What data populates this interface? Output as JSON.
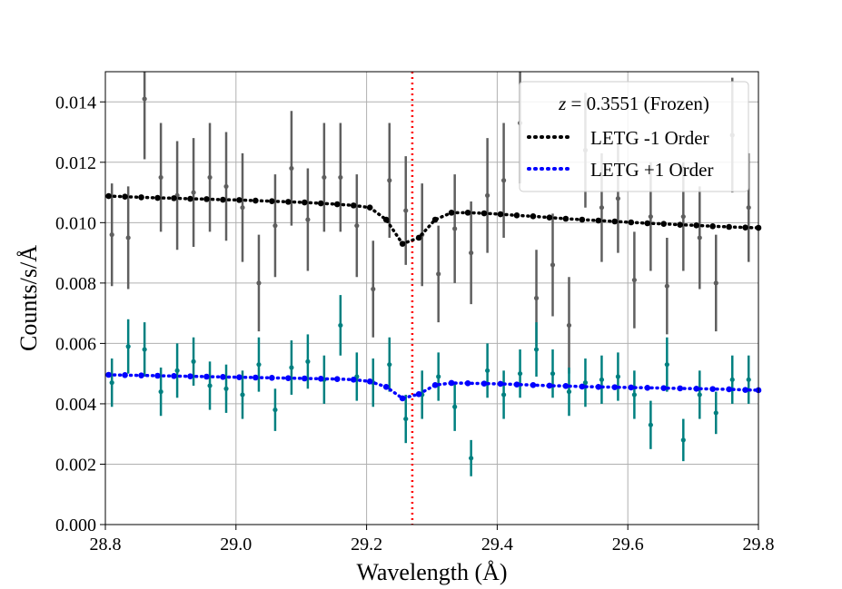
{
  "chart_data": {
    "type": "scatter",
    "xlabel": "Wavelength (Å)",
    "ylabel": "Counts/s/Å",
    "xlim": [
      28.8,
      29.8
    ],
    "ylim": [
      0.0,
      0.015
    ],
    "grid": true,
    "xticks": [
      "28.8",
      "29.0",
      "29.2",
      "29.4",
      "29.6",
      "29.8"
    ],
    "yticks": [
      "0.000",
      "0.002",
      "0.004",
      "0.006",
      "0.008",
      "0.010",
      "0.012",
      "0.014"
    ],
    "vline": {
      "x": 29.27,
      "color": "#ff0000",
      "style": "dotted"
    },
    "legend": {
      "title_italic": "z",
      "title_rest": " = 0.3551 (Frozen)",
      "entries": [
        "LETG -1 Order",
        "LETG +1 Order"
      ],
      "position": "top-right"
    },
    "colors": {
      "data_minus1": "#5f5f5f",
      "data_plus1": "#008080",
      "model_minus1": "#000000",
      "model_plus1": "#0000ff",
      "vline": "#ff0000",
      "grid": "#b0b0b0"
    },
    "data_x": [
      28.81,
      28.835,
      28.86,
      28.885,
      28.91,
      28.935,
      28.96,
      28.985,
      29.01,
      29.035,
      29.06,
      29.085,
      29.11,
      29.135,
      29.16,
      29.185,
      29.21,
      29.235,
      29.26,
      29.285,
      29.31,
      29.335,
      29.36,
      29.385,
      29.41,
      29.435,
      29.46,
      29.485,
      29.51,
      29.535,
      29.56,
      29.585,
      29.61,
      29.635,
      29.66,
      29.685,
      29.71,
      29.735,
      29.76,
      29.785
    ],
    "series_data": [
      {
        "name": "LETG -1 Order data",
        "y": [
          0.0096,
          0.0095,
          0.0141,
          0.0115,
          0.0109,
          0.011,
          0.0115,
          0.0112,
          0.0105,
          0.008,
          0.0099,
          0.0118,
          0.0101,
          0.0115,
          0.0115,
          0.0099,
          0.0078,
          0.0114,
          0.0104,
          0.0096,
          0.0083,
          0.0098,
          0.009,
          0.0109,
          0.0114,
          0.0133,
          0.0075,
          0.0086,
          0.0066,
          0.0124,
          0.0105,
          0.0108,
          0.0081,
          0.0102,
          0.0079,
          0.0102,
          0.0095,
          0.008,
          0.0129,
          0.0105
        ],
        "err": [
          0.0017,
          0.0017,
          0.002,
          0.0018,
          0.0018,
          0.0018,
          0.0018,
          0.0018,
          0.0018,
          0.0016,
          0.0017,
          0.0019,
          0.0017,
          0.0018,
          0.0018,
          0.0017,
          0.0016,
          0.0019,
          0.0018,
          0.0017,
          0.0016,
          0.0018,
          0.0017,
          0.0019,
          0.0019,
          0.002,
          0.0016,
          0.0017,
          0.0016,
          0.0019,
          0.0018,
          0.0018,
          0.0016,
          0.0018,
          0.0016,
          0.0018,
          0.0017,
          0.0016,
          0.0019,
          0.0018
        ]
      },
      {
        "name": "LETG +1 Order data",
        "y": [
          0.0047,
          0.0059,
          0.0058,
          0.0044,
          0.0051,
          0.0054,
          0.0046,
          0.0045,
          0.0043,
          0.0053,
          0.0038,
          0.0052,
          0.0054,
          0.0048,
          0.0066,
          0.0049,
          0.0047,
          0.0053,
          0.0035,
          0.0043,
          0.0049,
          0.0039,
          0.0022,
          0.0051,
          0.0043,
          0.005,
          0.0058,
          0.005,
          0.0044,
          0.0047,
          0.0048,
          0.0049,
          0.0043,
          0.0033,
          0.0053,
          0.0028,
          0.0043,
          0.0037,
          0.0048,
          0.0048
        ],
        "err": [
          0.0008,
          0.0009,
          0.0009,
          0.0008,
          0.0009,
          0.0008,
          0.0008,
          0.0008,
          0.0008,
          0.0009,
          0.0007,
          0.0009,
          0.0009,
          0.0008,
          0.001,
          0.0008,
          0.0008,
          0.0009,
          0.0008,
          0.0008,
          0.0008,
          0.0008,
          0.0006,
          0.0009,
          0.0008,
          0.0008,
          0.0009,
          0.0008,
          0.0008,
          0.0008,
          0.0008,
          0.0008,
          0.0008,
          0.0008,
          0.0009,
          0.0007,
          0.0008,
          0.0007,
          0.0008,
          0.0008
        ]
      }
    ],
    "model_x": [
      28.805,
      28.83,
      28.855,
      28.88,
      28.905,
      28.93,
      28.955,
      28.98,
      29.005,
      29.03,
      29.055,
      29.08,
      29.105,
      29.13,
      29.155,
      29.18,
      29.205,
      29.23,
      29.255,
      29.28,
      29.305,
      29.33,
      29.355,
      29.38,
      29.405,
      29.43,
      29.455,
      29.48,
      29.505,
      29.53,
      29.555,
      29.58,
      29.605,
      29.63,
      29.655,
      29.68,
      29.705,
      29.73,
      29.755,
      29.78,
      29.8
    ],
    "series_model": [
      {
        "name": "LETG -1 Order",
        "y": [
          0.01088,
          0.01086,
          0.01084,
          0.01082,
          0.01081,
          0.01079,
          0.01078,
          0.01076,
          0.01075,
          0.01073,
          0.01071,
          0.01069,
          0.01067,
          0.01064,
          0.01061,
          0.01057,
          0.0105,
          0.0101,
          0.0093,
          0.0095,
          0.0101,
          0.01033,
          0.01033,
          0.01031,
          0.01028,
          0.01024,
          0.01021,
          0.01017,
          0.01013,
          0.0101,
          0.01007,
          0.01004,
          0.01001,
          0.00998,
          0.00996,
          0.00993,
          0.00991,
          0.00988,
          0.00986,
          0.00984,
          0.00983
        ]
      },
      {
        "name": "LETG +1 Order",
        "y": [
          0.00496,
          0.00495,
          0.00494,
          0.00493,
          0.00492,
          0.00491,
          0.0049,
          0.00489,
          0.00488,
          0.00487,
          0.00486,
          0.00485,
          0.00484,
          0.00483,
          0.00482,
          0.0048,
          0.00474,
          0.00456,
          0.00418,
          0.00432,
          0.00462,
          0.00469,
          0.00468,
          0.00467,
          0.00466,
          0.00464,
          0.00462,
          0.0046,
          0.00459,
          0.00457,
          0.00456,
          0.00455,
          0.00454,
          0.00453,
          0.00452,
          0.00451,
          0.0045,
          0.00449,
          0.00448,
          0.00446,
          0.00445
        ]
      }
    ]
  }
}
